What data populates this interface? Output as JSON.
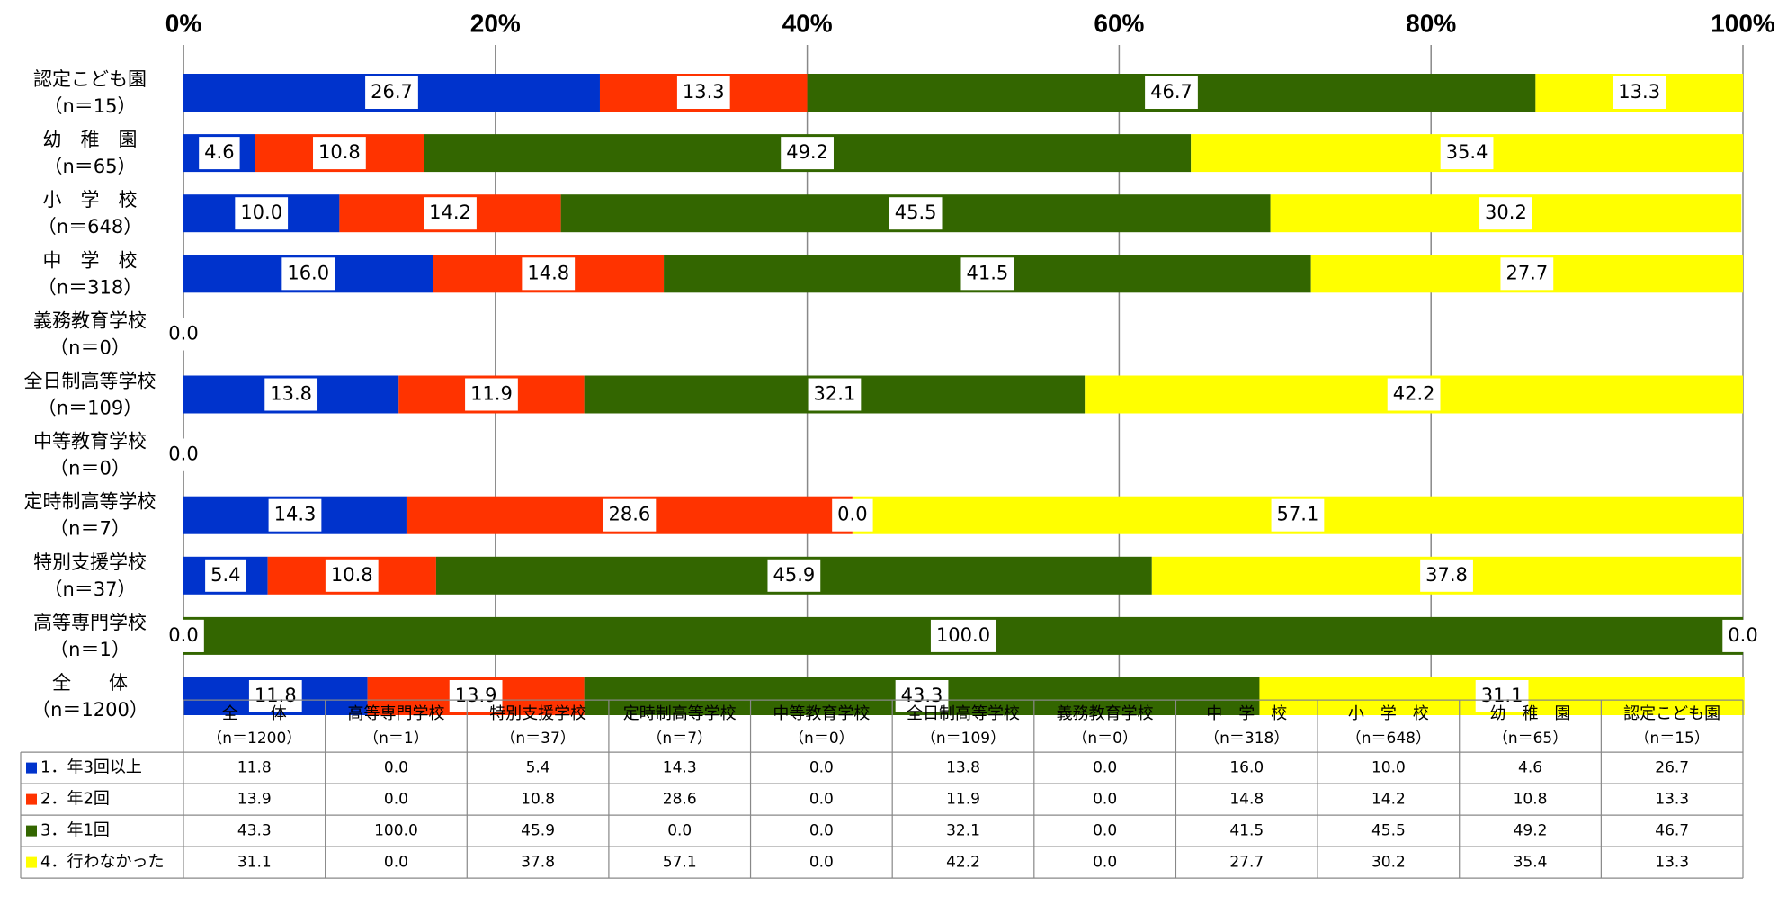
{
  "chart_data": {
    "type": "stacked_barh",
    "categories": [
      "認定こども園",
      "幼　稚　園",
      "小　学　校",
      "中　学　校",
      "義務教育学校",
      "全日制高等学校",
      "中等教育学校",
      "定時制高等学校",
      "特別支援学校",
      "高等専門学校",
      "全　　体"
    ],
    "category_notes": [
      "（n＝15）",
      "（n＝65）",
      "（n＝648）",
      "（n＝318）",
      "（n＝0）",
      "（n＝109）",
      "（n＝0）",
      "（n＝7）",
      "（n＝37）",
      "（n＝1）",
      "（n＝1200）"
    ],
    "series": [
      {
        "name": "1．年3回以上",
        "color": "#0033cc",
        "values": [
          26.7,
          4.6,
          10.0,
          16.0,
          0,
          13.8,
          0,
          14.3,
          5.4,
          0,
          11.8
        ],
        "value_labels": [
          "26.7",
          "4.6",
          "10.0",
          "16.0",
          "0.0",
          "13.8",
          "0.0",
          "14.3",
          "5.4",
          "0.0",
          "11.8"
        ]
      },
      {
        "name": "2．年2回",
        "color": "#ff3300",
        "values": [
          13.3,
          10.8,
          14.2,
          14.8,
          0,
          11.9,
          0,
          28.6,
          10.8,
          0,
          13.9
        ],
        "value_labels": [
          "13.3",
          "10.8",
          "14.2",
          "14.8",
          "0.0",
          "11.9",
          "0.0",
          "28.6",
          "10.8",
          "0.0",
          "13.9"
        ]
      },
      {
        "name": "3．年1回",
        "color": "#336600",
        "values": [
          46.7,
          49.2,
          45.5,
          41.5,
          0,
          32.1,
          0,
          0,
          45.9,
          100,
          43.3
        ],
        "value_labels": [
          "46.7",
          "49.2",
          "45.5",
          "41.5",
          "0.0",
          "32.1",
          "0.0",
          "0.0",
          "45.9",
          "100.0",
          "43.3"
        ]
      },
      {
        "name": "4．行わなかった",
        "color": "#ffff00",
        "values": [
          13.3,
          35.4,
          30.2,
          27.7,
          0,
          42.2,
          0,
          57.1,
          37.8,
          0,
          31.1
        ],
        "value_labels": [
          "13.3",
          "35.4",
          "30.2",
          "27.7",
          "0.0",
          "42.2",
          "0.0",
          "57.1",
          "37.8",
          "0.0",
          "31.1"
        ]
      }
    ],
    "xlim": [
      0,
      100
    ],
    "xticks": [
      {
        "value": 0,
        "label": "0%"
      },
      {
        "value": 20,
        "label": "20%"
      },
      {
        "value": 40,
        "label": "40%"
      },
      {
        "value": 60,
        "label": "60%"
      },
      {
        "value": 80,
        "label": "80%"
      },
      {
        "value": 100,
        "label": "100%"
      }
    ],
    "grid": true,
    "data_table": true
  }
}
